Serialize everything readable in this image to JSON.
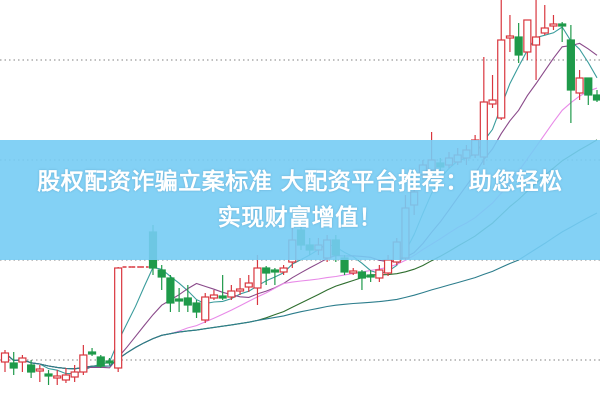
{
  "banner": {
    "line1": "股权配资诈骗立案标准 大配资平台推荐：助您轻松",
    "line2": "实现财富增值！"
  },
  "chart_data": {
    "type": "candlestick",
    "title": "",
    "grid": "dotted horizontal",
    "colors": {
      "up": "#d9363e",
      "down": "#1f9a4a",
      "grid": "#9a9a9a",
      "banner": "#76ccf4"
    },
    "ohlc_order": [
      "open",
      "high",
      "low",
      "close"
    ],
    "ylim": [
      0,
      40
    ],
    "candles": [
      [
        3.8,
        5.0,
        2.8,
        4.7
      ],
      [
        3.7,
        4.8,
        2.5,
        3.2
      ],
      [
        3.8,
        4.5,
        2.8,
        4.2
      ],
      [
        3.5,
        4.0,
        2.2,
        2.8
      ],
      [
        2.9,
        3.5,
        1.8,
        3.1
      ],
      [
        2.6,
        3.0,
        1.5,
        2.4
      ],
      [
        2.2,
        3.0,
        1.5,
        2.4
      ],
      [
        2.0,
        3.2,
        1.7,
        2.5
      ],
      [
        2.3,
        3.5,
        1.8,
        2.8
      ],
      [
        2.8,
        5.5,
        2.5,
        4.5
      ],
      [
        4.8,
        5.2,
        4.4,
        4.6
      ],
      [
        4.3,
        4.5,
        3.2,
        3.4
      ],
      [
        3.9,
        4.2,
        3.5,
        3.7
      ],
      [
        3.2,
        13.3,
        2.8,
        13.2
      ],
      [
        13.3,
        13.3,
        13.3,
        13.3
      ],
      [
        13.3,
        13.3,
        13.3,
        13.3
      ],
      [
        13.3,
        13.3,
        13.3,
        13.3
      ],
      [
        16.8,
        17.5,
        12.5,
        13.2
      ],
      [
        13.0,
        13.5,
        11.0,
        12.3
      ],
      [
        12.2,
        12.5,
        8.8,
        9.7
      ],
      [
        10.1,
        11.2,
        8.8,
        9.9
      ],
      [
        10.2,
        11.5,
        8.8,
        9.5
      ],
      [
        9.7,
        10.0,
        8.2,
        8.8
      ],
      [
        8.0,
        10.7,
        7.7,
        10.3
      ],
      [
        10.2,
        11.0,
        10.0,
        10.5
      ],
      [
        10.4,
        12.5,
        10.0,
        10.2
      ],
      [
        10.3,
        11.5,
        10.0,
        10.9
      ],
      [
        10.9,
        12.2,
        10.5,
        11.1
      ],
      [
        11.3,
        12.5,
        10.8,
        11.7
      ],
      [
        11.2,
        14.5,
        9.5,
        13.2
      ],
      [
        13.2,
        13.4,
        11.5,
        12.7
      ],
      [
        13.0,
        13.2,
        11.5,
        12.8
      ],
      [
        12.8,
        13.5,
        12.5,
        13.2
      ],
      [
        13.8,
        17.5,
        13.2,
        16.0
      ],
      [
        17.0,
        17.5,
        15.0,
        15.5
      ],
      [
        15.5,
        16.2,
        14.5,
        15.0
      ],
      [
        15.0,
        16.2,
        14.5,
        15.5
      ],
      [
        14.2,
        16.5,
        13.8,
        16.0
      ],
      [
        16.0,
        16.5,
        13.8,
        14.5
      ],
      [
        14.2,
        14.5,
        12.5,
        12.8
      ],
      [
        12.7,
        13.2,
        12.5,
        12.9
      ],
      [
        12.8,
        13.0,
        11.0,
        12.2
      ],
      [
        12.5,
        13.0,
        11.8,
        12.3
      ],
      [
        12.2,
        13.5,
        11.8,
        13.0
      ],
      [
        12.7,
        14.5,
        12.4,
        14.0
      ],
      [
        13.8,
        16.2,
        13.5,
        15.8
      ],
      [
        14.2,
        20.5,
        14.0,
        19.2
      ],
      [
        19.5,
        22.0,
        18.5,
        20.8
      ],
      [
        22.5,
        24.0,
        22.0,
        23.5
      ],
      [
        23.0,
        26.8,
        22.0,
        24.0
      ],
      [
        23.7,
        24.2,
        22.8,
        23.3
      ],
      [
        23.5,
        24.8,
        23.2,
        24.2
      ],
      [
        23.8,
        25.2,
        23.5,
        24.5
      ],
      [
        24.2,
        25.5,
        23.5,
        25.0
      ],
      [
        24.5,
        26.5,
        24.2,
        26.0
      ],
      [
        24.3,
        34.3,
        23.5,
        29.8
      ],
      [
        29.6,
        32.5,
        29.2,
        30.0
      ],
      [
        28.2,
        40.0,
        28.0,
        36.0
      ],
      [
        36.2,
        38.5,
        34.8,
        36.4
      ],
      [
        36.3,
        37.7,
        33.7,
        34.5
      ],
      [
        34.8,
        38.0,
        34.0,
        38.0
      ],
      [
        35.5,
        40.0,
        32.0,
        36.3
      ],
      [
        36.7,
        39.5,
        36.5,
        37.2
      ],
      [
        37.4,
        38.5,
        37.0,
        37.6
      ],
      [
        37.6,
        37.8,
        35.8,
        37.4
      ],
      [
        36.0,
        37.5,
        27.7,
        31.0
      ],
      [
        30.7,
        33.0,
        30.0,
        32.2
      ],
      [
        32.2,
        32.2,
        29.5,
        30.5
      ],
      [
        30.5,
        31.0,
        29.8,
        30.0
      ]
    ],
    "gridlines": [
      34,
      24,
      14,
      4
    ],
    "moving_averages": [
      {
        "period": 5,
        "color": "#3a9c9c"
      },
      {
        "period": 10,
        "color": "#8a4a8a"
      },
      {
        "period": 20,
        "color": "#e88ae8"
      },
      {
        "period": 30,
        "color": "#2f6e2f"
      },
      {
        "period": 60,
        "color": "#2c7d8c"
      }
    ]
  }
}
